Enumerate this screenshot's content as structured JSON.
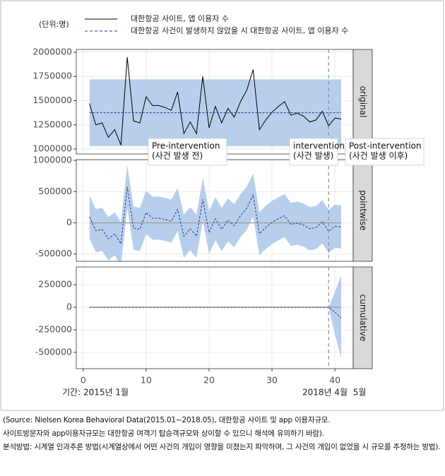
{
  "chart_data": {
    "type": "facet-line",
    "unit_note": "(단위:명)",
    "x": [
      1,
      2,
      3,
      4,
      5,
      6,
      7,
      8,
      9,
      10,
      11,
      12,
      13,
      14,
      15,
      16,
      17,
      18,
      19,
      20,
      21,
      22,
      23,
      24,
      25,
      26,
      27,
      28,
      29,
      30,
      31,
      32,
      33,
      34,
      35,
      36,
      37,
      38,
      39,
      40,
      41
    ],
    "xlim": [
      -1.1,
      42.9
    ],
    "xticks": [
      0,
      10,
      20,
      30,
      40
    ],
    "intervention": 39,
    "grid": true,
    "band_color": "#b7cfec",
    "panels": [
      {
        "strip": "original",
        "ylim": [
          949000,
          2029000
        ],
        "yticks": [
          1000000,
          1250000,
          1500000,
          1750000,
          2000000
        ],
        "band": {
          "lower": [
            1030000,
            1030000,
            1030000,
            1030000,
            1030000,
            1030000,
            1030000,
            1030000,
            1030000,
            1030000,
            1030000,
            1030000,
            1030000,
            1030000,
            1030000,
            1030000,
            1030000,
            1030000,
            1030000,
            1030000,
            1030000,
            1030000,
            1030000,
            1030000,
            1030000,
            1030000,
            1030000,
            1030000,
            1030000,
            1030000,
            1030000,
            1030000,
            1030000,
            1030000,
            1030000,
            1030000,
            1030000,
            1030000,
            1030000,
            1030000,
            1030000
          ],
          "upper": [
            1720000,
            1720000,
            1720000,
            1720000,
            1720000,
            1720000,
            1720000,
            1720000,
            1720000,
            1720000,
            1720000,
            1720000,
            1720000,
            1720000,
            1720000,
            1720000,
            1720000,
            1720000,
            1720000,
            1720000,
            1720000,
            1720000,
            1720000,
            1720000,
            1720000,
            1720000,
            1720000,
            1720000,
            1720000,
            1720000,
            1720000,
            1720000,
            1720000,
            1720000,
            1720000,
            1720000,
            1720000,
            1720000,
            1720000,
            1720000,
            1720000
          ]
        },
        "series": [
          {
            "name": "대한항공 사이트, 앱 이용자 수",
            "color": "#000000",
            "dash": false,
            "values": [
              1470000,
              1250000,
              1270000,
              1120000,
              1200000,
              1040000,
              1950000,
              1290000,
              1270000,
              1540000,
              1450000,
              1450000,
              1430000,
              1400000,
              1590000,
              1160000,
              1280000,
              1160000,
              1750000,
              1220000,
              1440000,
              1270000,
              1420000,
              1330000,
              1490000,
              1610000,
              1820000,
              1200000,
              1300000,
              1380000,
              1440000,
              1490000,
              1350000,
              1370000,
              1340000,
              1280000,
              1300000,
              1390000,
              1240000,
              1320000,
              1310000
            ]
          },
          {
            "name": "대한항공 사건이 발생하지 않았을 시 대한항공 사이트, 앱 이용자 수",
            "color": "#283593",
            "dash": true,
            "values": [
              1375000,
              1375000,
              1375000,
              1375000,
              1375000,
              1375000,
              1375000,
              1375000,
              1375000,
              1375000,
              1375000,
              1375000,
              1375000,
              1375000,
              1375000,
              1375000,
              1375000,
              1375000,
              1375000,
              1375000,
              1375000,
              1375000,
              1375000,
              1375000,
              1375000,
              1375000,
              1375000,
              1375000,
              1375000,
              1375000,
              1375000,
              1375000,
              1375000,
              1375000,
              1375000,
              1375000,
              1375000,
              1375000,
              1375000,
              1375000,
              1375000
            ]
          }
        ]
      },
      {
        "strip": "pointwise",
        "ylim": [
          -616000,
          1012000
        ],
        "yticks": [
          -500000,
          0,
          500000,
          1000000
        ],
        "hline": 0,
        "band": {
          "lower": [
            -250000,
            -470000,
            -450000,
            -600000,
            -520000,
            -680000,
            230000,
            -430000,
            -450000,
            -180000,
            -270000,
            -270000,
            -290000,
            -320000,
            -130000,
            -560000,
            -440000,
            -560000,
            30000,
            -500000,
            -280000,
            -450000,
            -300000,
            -390000,
            -230000,
            -110000,
            100000,
            -520000,
            -420000,
            -340000,
            -280000,
            -230000,
            -370000,
            -350000,
            -380000,
            -440000,
            -420000,
            -330000,
            -480000,
            -400000,
            -410000
          ],
          "upper": [
            440000,
            220000,
            240000,
            90000,
            170000,
            10000,
            920000,
            260000,
            240000,
            510000,
            420000,
            420000,
            400000,
            370000,
            560000,
            130000,
            250000,
            130000,
            720000,
            190000,
            410000,
            240000,
            390000,
            300000,
            460000,
            580000,
            790000,
            170000,
            270000,
            350000,
            410000,
            460000,
            320000,
            340000,
            310000,
            250000,
            270000,
            360000,
            210000,
            290000,
            280000
          ]
        },
        "series": [
          {
            "color": "#283593",
            "dash": true,
            "values": [
              95000,
              -125000,
              -105000,
              -255000,
              -175000,
              -335000,
              575000,
              -85000,
              -105000,
              165000,
              75000,
              75000,
              55000,
              25000,
              215000,
              -215000,
              -95000,
              -215000,
              375000,
              -155000,
              65000,
              -105000,
              45000,
              -45000,
              115000,
              235000,
              445000,
              -175000,
              -75000,
              5000,
              65000,
              115000,
              -25000,
              -5000,
              -35000,
              -95000,
              -75000,
              15000,
              -135000,
              -55000,
              -65000
            ]
          }
        ]
      },
      {
        "strip": "cumulative",
        "ylim": [
          -681000,
          447000
        ],
        "yticks": [
          -500000,
          -250000,
          0,
          250000
        ],
        "hline": 0,
        "band": {
          "lower": [
            0,
            0,
            0,
            0,
            0,
            0,
            0,
            0,
            0,
            0,
            0,
            0,
            0,
            0,
            0,
            0,
            0,
            0,
            0,
            0,
            0,
            0,
            0,
            0,
            0,
            0,
            0,
            0,
            0,
            0,
            0,
            0,
            0,
            0,
            0,
            0,
            0,
            0,
            0,
            -300000,
            -560000
          ],
          "upper": [
            0,
            0,
            0,
            0,
            0,
            0,
            0,
            0,
            0,
            0,
            0,
            0,
            0,
            0,
            0,
            0,
            0,
            0,
            0,
            0,
            0,
            0,
            0,
            0,
            0,
            0,
            0,
            0,
            0,
            0,
            0,
            0,
            0,
            0,
            0,
            0,
            0,
            0,
            0,
            170000,
            350000
          ]
        },
        "series": [
          {
            "color": "#283593",
            "dash": true,
            "values": [
              0,
              0,
              0,
              0,
              0,
              0,
              0,
              0,
              0,
              0,
              0,
              0,
              0,
              0,
              0,
              0,
              0,
              0,
              0,
              0,
              0,
              0,
              0,
              0,
              0,
              0,
              0,
              0,
              0,
              0,
              0,
              0,
              0,
              0,
              0,
              0,
              0,
              0,
              0,
              -55000,
              -120000
            ]
          }
        ]
      }
    ],
    "annotations": [
      {
        "lines": [
          "Pre-intervention",
          "(사건 발생 전)"
        ]
      },
      {
        "lines": [
          "intervention",
          "(사건 발생)"
        ]
      },
      {
        "lines": [
          "Post-intervention",
          "(사건 발생 이후)"
        ]
      }
    ],
    "x_notes": [
      "기간: 2015년 1월",
      "2018년 4월  5월"
    ]
  },
  "footnotes": [
    "(Source: Nielsen Korea Behavioral Data(2015.01~2018.05), 대한항공 사이트 및 app 이용자규모.",
    "사이트방문자와 app이용자규모는 대한항공 여객기 탑승객규모와 상이할 수 있으니 해석에 유의하기 바람).",
    "분석방법: 시계열 인과추론 방법(시계열상에서 어떤 사건의 개입이 영향을 미쳤는지 파악하며, 그 사건의 개입이 없었을 시 규모를 추정하는 방법)."
  ]
}
